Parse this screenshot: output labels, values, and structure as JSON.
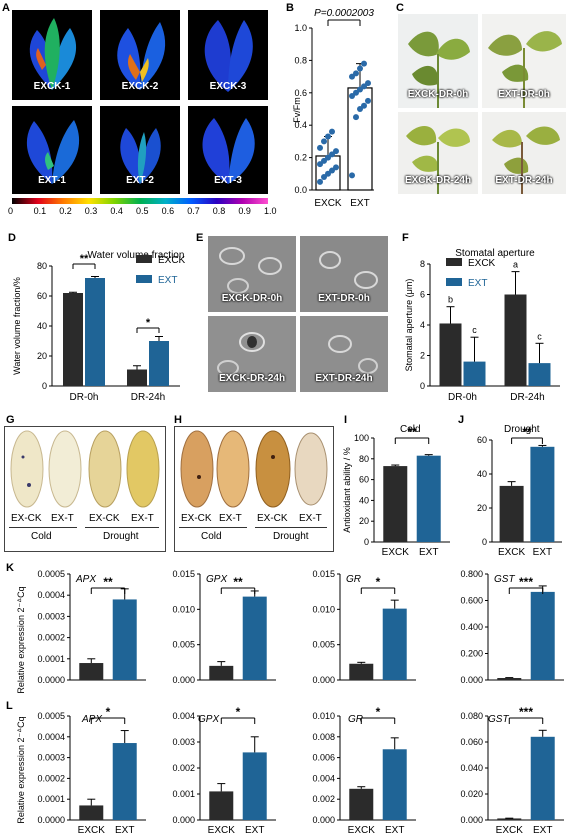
{
  "panels": {
    "A": "A",
    "B": "B",
    "C": "C",
    "D": "D",
    "E": "E",
    "F": "F",
    "G": "G",
    "H": "H",
    "I": "I",
    "J": "J",
    "K": "K",
    "L": "L"
  },
  "panel_a": {
    "tiles": [
      "EXCK-1",
      "EXCK-2",
      "EXCK-3",
      "EXT-1",
      "EXT-2",
      "EXT-3"
    ],
    "colorbar_ticks": [
      "0",
      "0.1",
      "0.2",
      "0.3",
      "0.4",
      "0.5",
      "0.6",
      "0.7",
      "0.8",
      "0.9",
      "1.0"
    ],
    "colorbar_colors": [
      "#000000",
      "#e0001b",
      "#ff7a00",
      "#ffe000",
      "#7fd400",
      "#00b050",
      "#00b0c8",
      "#005cff",
      "#2a00c0",
      "#b000b0",
      "#ff4fd0"
    ]
  },
  "panel_c": {
    "photos": [
      "EXCK-DR-0h",
      "EXT-DR-0h",
      "EXCK-DR-24h",
      "EXT-DR-24h"
    ]
  },
  "panel_e": {
    "photos": [
      "EXCK-DR-0h",
      "EXT-DR-0h",
      "EXCK-DR-24h",
      "EXT-DR-24h"
    ]
  },
  "panel_g": {
    "leaf_labels": [
      "EX-CK",
      "EX-T",
      "EX-CK",
      "EX-T"
    ],
    "groups": [
      "Cold",
      "Drought"
    ]
  },
  "panel_h": {
    "leaf_labels": [
      "EX-CK",
      "EX-T",
      "EX-CK",
      "EX-T"
    ],
    "groups": [
      "Cold",
      "Drought"
    ]
  },
  "colors": {
    "exck": "#2b2b2b",
    "ext": "#1f6496",
    "dot": "#2a6aa8"
  },
  "chart_data": [
    {
      "id": "B",
      "type": "scatter",
      "title": "P=0.0002003",
      "ylabel": "Fv/Fm",
      "categories": [
        "EXCK",
        "EXT"
      ],
      "ylim": [
        0,
        1.0
      ],
      "yticks": [
        "0.0",
        "0.2",
        "0.4",
        "0.6",
        "0.8",
        "1.0"
      ],
      "bars": [
        0.21,
        0.63
      ],
      "errors": [
        0.12,
        0.15
      ],
      "points": [
        [
          0.05,
          0.08,
          0.1,
          0.12,
          0.14,
          0.16,
          0.18,
          0.2,
          0.22,
          0.24,
          0.26,
          0.3,
          0.33,
          0.36
        ],
        [
          0.09,
          0.45,
          0.5,
          0.52,
          0.55,
          0.58,
          0.6,
          0.62,
          0.64,
          0.66,
          0.7,
          0.72,
          0.75,
          0.78
        ]
      ],
      "significance": "P=0.0002003"
    },
    {
      "id": "D",
      "type": "bar",
      "title": "Water volume fraction",
      "ylabel": "Water volume fraction/%",
      "categories": [
        "DR-0h",
        "DR-24h"
      ],
      "ylim": [
        0,
        80
      ],
      "yticks": [
        "0",
        "20",
        "40",
        "60",
        "80"
      ],
      "series": [
        {
          "name": "EXCK",
          "values": [
            62,
            11
          ],
          "errors": [
            0.5,
            2.5
          ]
        },
        {
          "name": "EXT",
          "values": [
            72,
            30
          ],
          "errors": [
            1,
            3
          ]
        }
      ],
      "significance": [
        "**",
        "*"
      ]
    },
    {
      "id": "F",
      "type": "bar",
      "title": "Stomatal aperture",
      "ylabel": "Stomatal aperture (μm)",
      "categories": [
        "DR-0h",
        "DR-24h"
      ],
      "ylim": [
        0,
        8
      ],
      "yticks": [
        "0",
        "2",
        "4",
        "6",
        "8"
      ],
      "series": [
        {
          "name": "EXCK",
          "values": [
            4.1,
            6.0
          ],
          "errors": [
            1.1,
            1.5
          ]
        },
        {
          "name": "EXT",
          "values": [
            1.6,
            1.5
          ],
          "errors": [
            1.6,
            1.3
          ]
        }
      ],
      "letters": [
        [
          "b",
          "c"
        ],
        [
          "a",
          "c"
        ]
      ]
    },
    {
      "id": "I",
      "type": "bar",
      "title": "Cold",
      "ylabel": "Antioxidant ability / %",
      "categories": [
        "EXCK",
        "EXT"
      ],
      "ylim": [
        0,
        100
      ],
      "yticks": [
        "0",
        "20",
        "40",
        "60",
        "80",
        "100"
      ],
      "values": [
        73,
        83
      ],
      "errors": [
        1,
        1
      ],
      "significance": "**"
    },
    {
      "id": "J",
      "type": "bar",
      "title": "Drought",
      "ylabel": "",
      "categories": [
        "EXCK",
        "EXT"
      ],
      "ylim": [
        0,
        60
      ],
      "yticks": [
        "0",
        "20",
        "40",
        "60"
      ],
      "values": [
        33,
        56
      ],
      "errors": [
        2.5,
        0.8
      ],
      "significance": "**"
    },
    {
      "id": "K1",
      "type": "bar",
      "title": "APX",
      "ylabel": "Relative expression 2⁻ᐞCq",
      "categories": [
        "",
        ""
      ],
      "ylim": [
        0,
        0.0005
      ],
      "yticks": [
        "0.0000",
        "0.0001",
        "0.0002",
        "0.0003",
        "0.0004",
        "0.0005"
      ],
      "values": [
        8e-05,
        0.00038
      ],
      "errors": [
        2e-05,
        5e-05
      ],
      "significance": "**"
    },
    {
      "id": "K2",
      "type": "bar",
      "title": "GPX",
      "ylabel": "",
      "categories": [
        "",
        ""
      ],
      "ylim": [
        0,
        0.015
      ],
      "yticks": [
        "0.000",
        "0.005",
        "0.010",
        "0.015"
      ],
      "values": [
        0.002,
        0.0118
      ],
      "errors": [
        0.0006,
        0.0008
      ],
      "significance": "**"
    },
    {
      "id": "K3",
      "type": "bar",
      "title": "GR",
      "ylabel": "",
      "categories": [
        "",
        ""
      ],
      "ylim": [
        0,
        0.015
      ],
      "yticks": [
        "0.000",
        "0.005",
        "0.010",
        "0.015"
      ],
      "values": [
        0.0023,
        0.0101
      ],
      "errors": [
        0.0002,
        0.0012
      ],
      "significance": "*"
    },
    {
      "id": "K4",
      "type": "bar",
      "title": "GST",
      "ylabel": "",
      "categories": [
        "",
        ""
      ],
      "ylim": [
        0,
        0.8
      ],
      "yticks": [
        "0.000",
        "0.200",
        "0.400",
        "0.600",
        "0.800"
      ],
      "values": [
        0.015,
        0.665
      ],
      "errors": [
        0.003,
        0.045
      ],
      "significance": "***"
    },
    {
      "id": "L1",
      "type": "bar",
      "title": "APX",
      "ylabel": "Relative expression 2⁻ᐞCq",
      "categories": [
        "EXCK",
        "EXT"
      ],
      "ylim": [
        0,
        0.0005
      ],
      "yticks": [
        "0.0000",
        "0.0001",
        "0.0002",
        "0.0003",
        "0.0004",
        "0.0005"
      ],
      "values": [
        7e-05,
        0.00037
      ],
      "errors": [
        3e-05,
        6e-05
      ],
      "significance": "*"
    },
    {
      "id": "L2",
      "type": "bar",
      "title": "GPX",
      "ylabel": "",
      "categories": [
        "EXCK",
        "EXT"
      ],
      "ylim": [
        0,
        0.004
      ],
      "yticks": [
        "0.000",
        "0.001",
        "0.002",
        "0.003",
        "0.004"
      ],
      "values": [
        0.0011,
        0.0026
      ],
      "errors": [
        0.0003,
        0.0006
      ],
      "significance": "*"
    },
    {
      "id": "L3",
      "type": "bar",
      "title": "GR",
      "ylabel": "",
      "categories": [
        "EXCK",
        "EXT"
      ],
      "ylim": [
        0,
        0.01
      ],
      "yticks": [
        "0.000",
        "0.002",
        "0.004",
        "0.006",
        "0.008",
        "0.010"
      ],
      "values": [
        0.003,
        0.0068
      ],
      "errors": [
        0.0002,
        0.0011
      ],
      "significance": "*"
    },
    {
      "id": "L4",
      "type": "bar",
      "title": "GST",
      "ylabel": "",
      "categories": [
        "EXCK",
        "EXT"
      ],
      "ylim": [
        0,
        0.08
      ],
      "yticks": [
        "0.000",
        "0.020",
        "0.040",
        "0.060",
        "0.080"
      ],
      "values": [
        0.0012,
        0.064
      ],
      "errors": [
        0.0002,
        0.005
      ],
      "significance": "***"
    }
  ]
}
